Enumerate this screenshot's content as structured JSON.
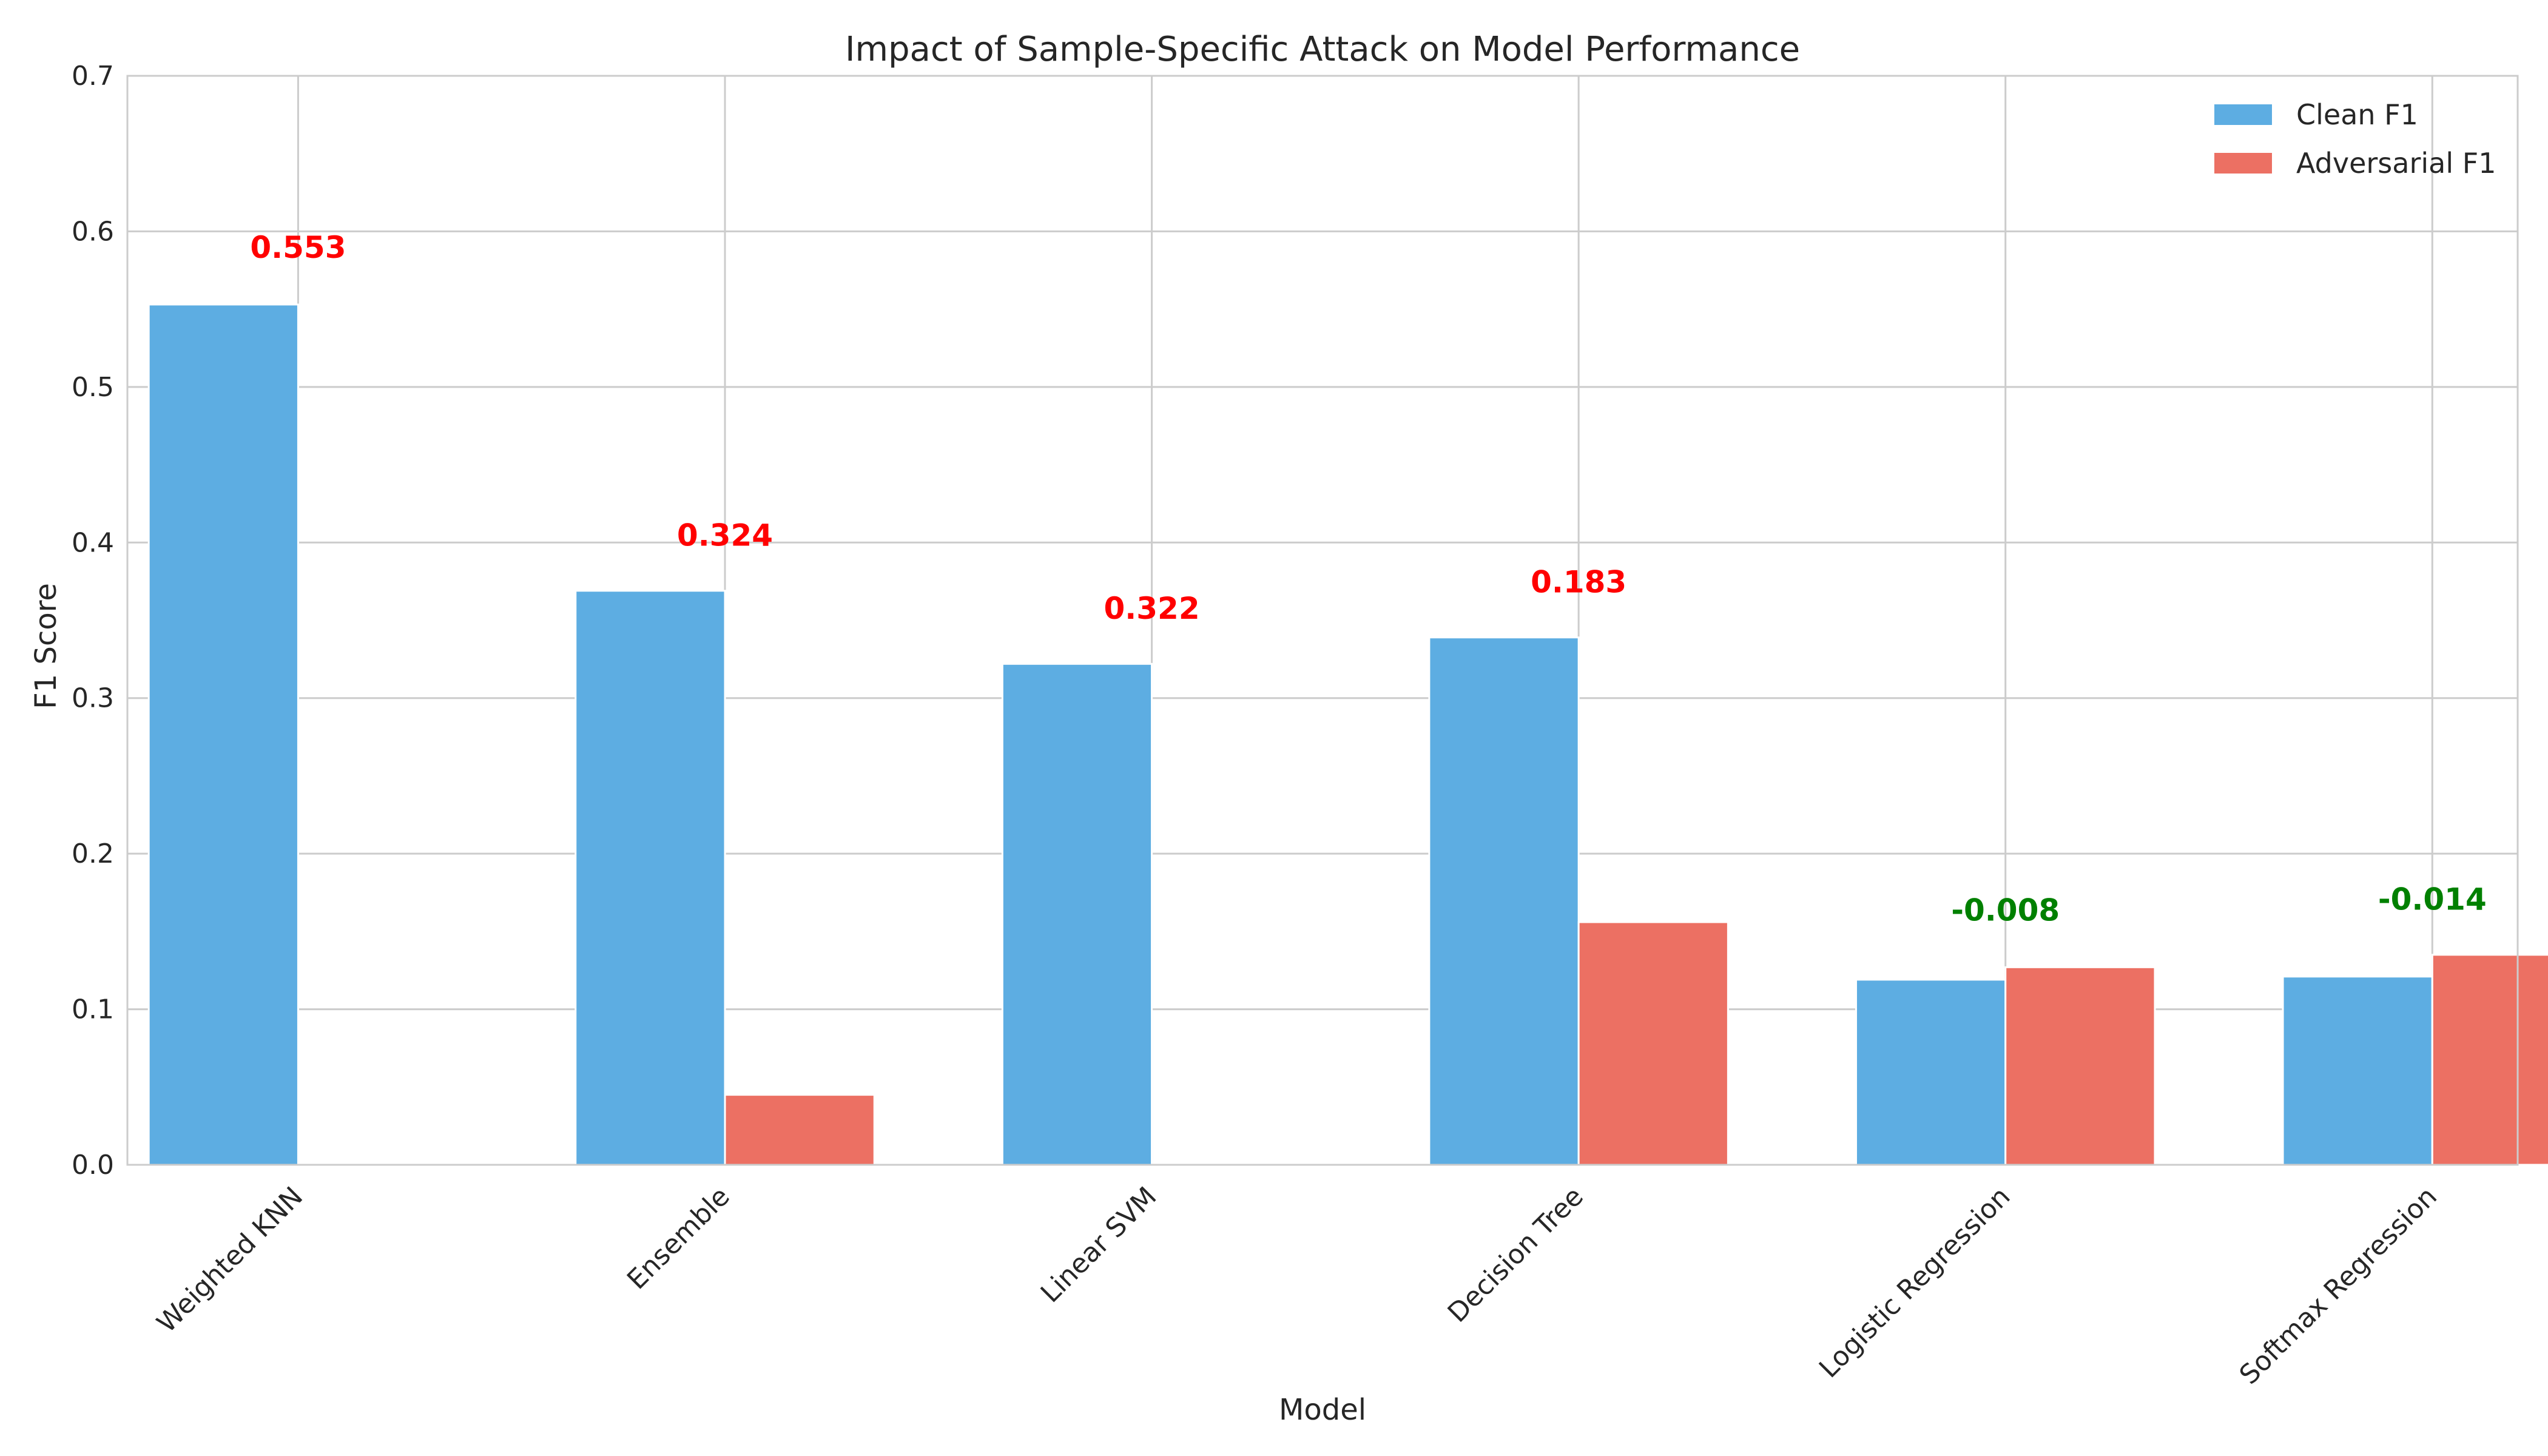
{
  "chart_data": {
    "type": "bar",
    "title": "Impact of Sample-Specific Attack on Model Performance",
    "xlabel": "Model",
    "ylabel": "F1 Score",
    "ylim": [
      0,
      0.7
    ],
    "yticks": [
      "0.0",
      "0.1",
      "0.2",
      "0.3",
      "0.4",
      "0.5",
      "0.6",
      "0.7"
    ],
    "categories": [
      "Weighted KNN",
      "Ensemble",
      "Linear SVM",
      "Decision Tree",
      "Logistic Regression",
      "Softmax Regression"
    ],
    "series": [
      {
        "name": "Clean F1",
        "color": "#5DADE2",
        "values": [
          0.553,
          0.369,
          0.322,
          0.339,
          0.119,
          0.121
        ]
      },
      {
        "name": "Adversarial F1",
        "color": "#EC7063",
        "values": [
          0.0,
          0.045,
          0.0,
          0.156,
          0.127,
          0.135
        ]
      }
    ],
    "annotations": [
      {
        "text": "0.553",
        "y": 0.59,
        "color": "#FF0000"
      },
      {
        "text": "0.324",
        "y": 0.405,
        "color": "#FF0000"
      },
      {
        "text": "0.322",
        "y": 0.358,
        "color": "#FF0000"
      },
      {
        "text": "0.183",
        "y": 0.375,
        "color": "#FF0000"
      },
      {
        "text": "-0.008",
        "y": 0.164,
        "color": "#008000"
      },
      {
        "text": "-0.014",
        "y": 0.171,
        "color": "#008000"
      }
    ],
    "grid": true,
    "legend_position": "top-right"
  }
}
